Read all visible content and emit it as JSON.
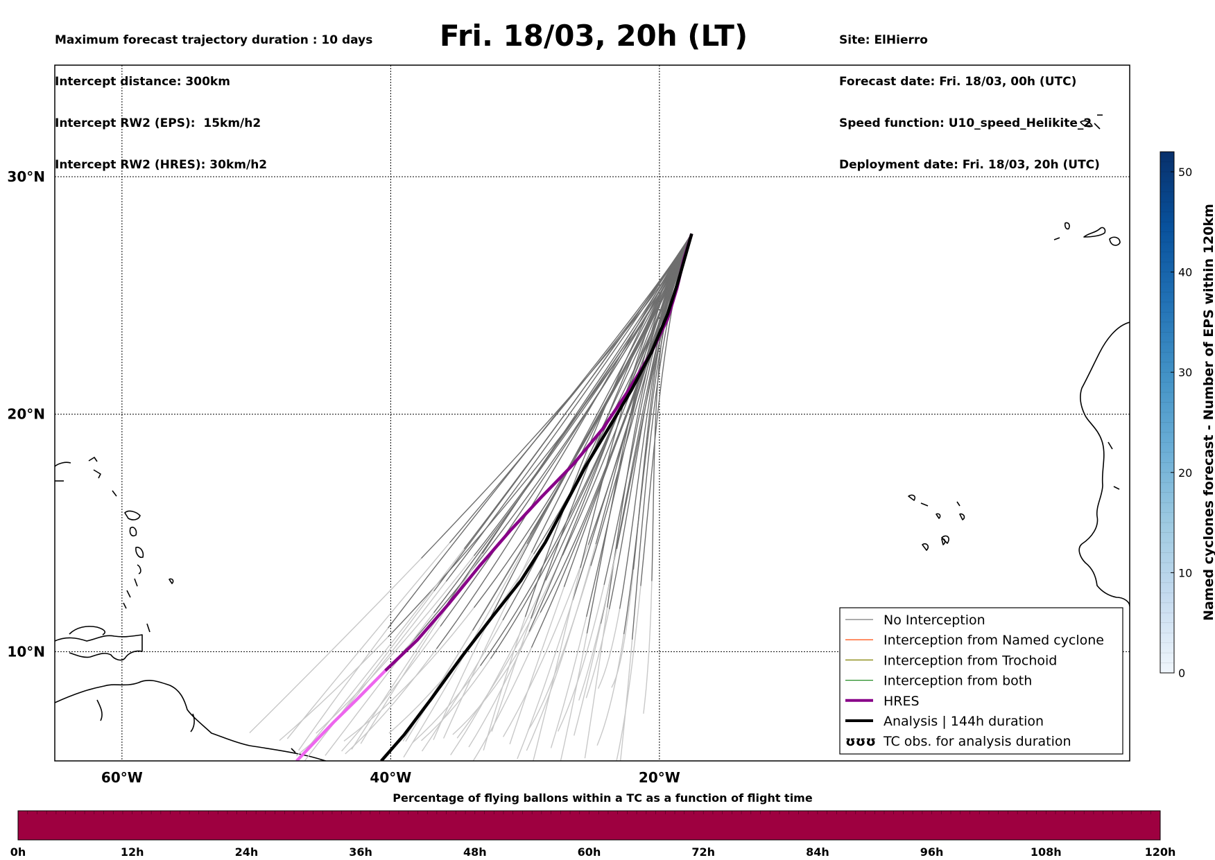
{
  "title": "Fri. 18/03, 20h (LT)",
  "info_left": [
    "Maximum forecast trajectory duration : 10 days",
    "Intercept distance: 300km",
    "Intercept RW2 (EPS):  15km/h2",
    "Intercept RW2 (HRES): 30km/h2"
  ],
  "info_right": [
    "Site: ElHierro",
    "Forecast date: Fri. 18/03, 00h (UTC)",
    "Speed function: U10_speed_Helikite_2",
    "Deployment date: Fri. 18/03, 20h (UTC)"
  ],
  "map": {
    "lon_range": [
      -65,
      15
    ],
    "lat_range": [
      5.4,
      34.7
    ],
    "lon_ticks": [
      {
        "value": -60,
        "label": "60°W"
      },
      {
        "value": -40,
        "label": "40°W"
      },
      {
        "value": -20,
        "label": "20°W"
      }
    ],
    "lat_ticks": [
      {
        "value": 10,
        "label": "10°N"
      },
      {
        "value": 20,
        "label": "20°N"
      },
      {
        "value": 30,
        "label": "30°N"
      }
    ],
    "grid": true,
    "colors": {
      "no_interception": "#6e6e6e",
      "no_interception_faded": "#c8c8c8",
      "named_cyclone": "#ff5a1e",
      "trochoid": "#808000",
      "both": "#228b22",
      "hres": "#880088",
      "hres_faded": "#ee66ee",
      "analysis": "#000000"
    },
    "hres_track": [
      [
        -17.6,
        27.6
      ],
      [
        -18.2,
        26.5
      ],
      [
        -18.7,
        25.3
      ],
      [
        -19.4,
        24.0
      ],
      [
        -20.6,
        22.6
      ],
      [
        -22.3,
        21.0
      ],
      [
        -24.2,
        19.4
      ],
      [
        -26.4,
        17.9
      ],
      [
        -28.8,
        16.5
      ],
      [
        -31.1,
        15.1
      ],
      [
        -33.4,
        13.6
      ],
      [
        -35.7,
        12.0
      ],
      [
        -38.0,
        10.5
      ],
      [
        -40.4,
        9.2
      ],
      [
        -42.5,
        8.0
      ],
      [
        -44.3,
        7.0
      ],
      [
        -47.0,
        5.4
      ]
    ],
    "hres_fade_lon": -40.4,
    "analysis_track": [
      [
        -17.6,
        27.6
      ],
      [
        -18.0,
        26.8
      ],
      [
        -18.6,
        25.6
      ],
      [
        -19.4,
        24.2
      ],
      [
        -20.6,
        22.6
      ],
      [
        -22.1,
        21.0
      ],
      [
        -23.8,
        19.4
      ],
      [
        -25.5,
        17.8
      ],
      [
        -27.0,
        16.2
      ],
      [
        -28.5,
        14.6
      ],
      [
        -30.3,
        13.0
      ],
      [
        -32.4,
        11.5
      ],
      [
        -34.7,
        9.8
      ],
      [
        -37.0,
        8.0
      ],
      [
        -39.0,
        6.5
      ],
      [
        -40.7,
        5.4
      ]
    ],
    "coastline_label": "coastlines"
  },
  "legend": {
    "items": [
      {
        "label": "No Interception",
        "style": "thin",
        "color": "#7a7a7a"
      },
      {
        "label": "Interception from Named cyclone",
        "style": "thin",
        "color": "#ff5a1e"
      },
      {
        "label": "Interception from Trochoid",
        "style": "thin",
        "color": "#808000"
      },
      {
        "label": "Interception from both",
        "style": "thin",
        "color": "#228b22"
      },
      {
        "label": "HRES",
        "style": "thick",
        "color": "#880088"
      },
      {
        "label": "Analysis | 144h duration",
        "style": "thick",
        "color": "#000000"
      },
      {
        "label": "TC obs. for analysis duration",
        "style": "symbol",
        "symbol": "ʊʊʊ"
      }
    ]
  },
  "colorbar": {
    "label": "Named cyclones forecast - Number of EPS within 120km",
    "min": 0,
    "max": 52,
    "ticks": [
      0,
      10,
      20,
      30,
      40,
      50
    ],
    "colormap": [
      "#f0f6fc",
      "#c6dbef",
      "#9ecae1",
      "#6baed6",
      "#4292c6",
      "#2171b5",
      "#08519c",
      "#08306b"
    ]
  },
  "bottom_bar": {
    "title": "Percentage of flying ballons within a TC as a function of flight time",
    "ticks": [
      "0h",
      "12h",
      "24h",
      "36h",
      "48h",
      "60h",
      "72h",
      "84h",
      "96h",
      "108h",
      "120h"
    ],
    "fill_color": "#9e0040"
  }
}
